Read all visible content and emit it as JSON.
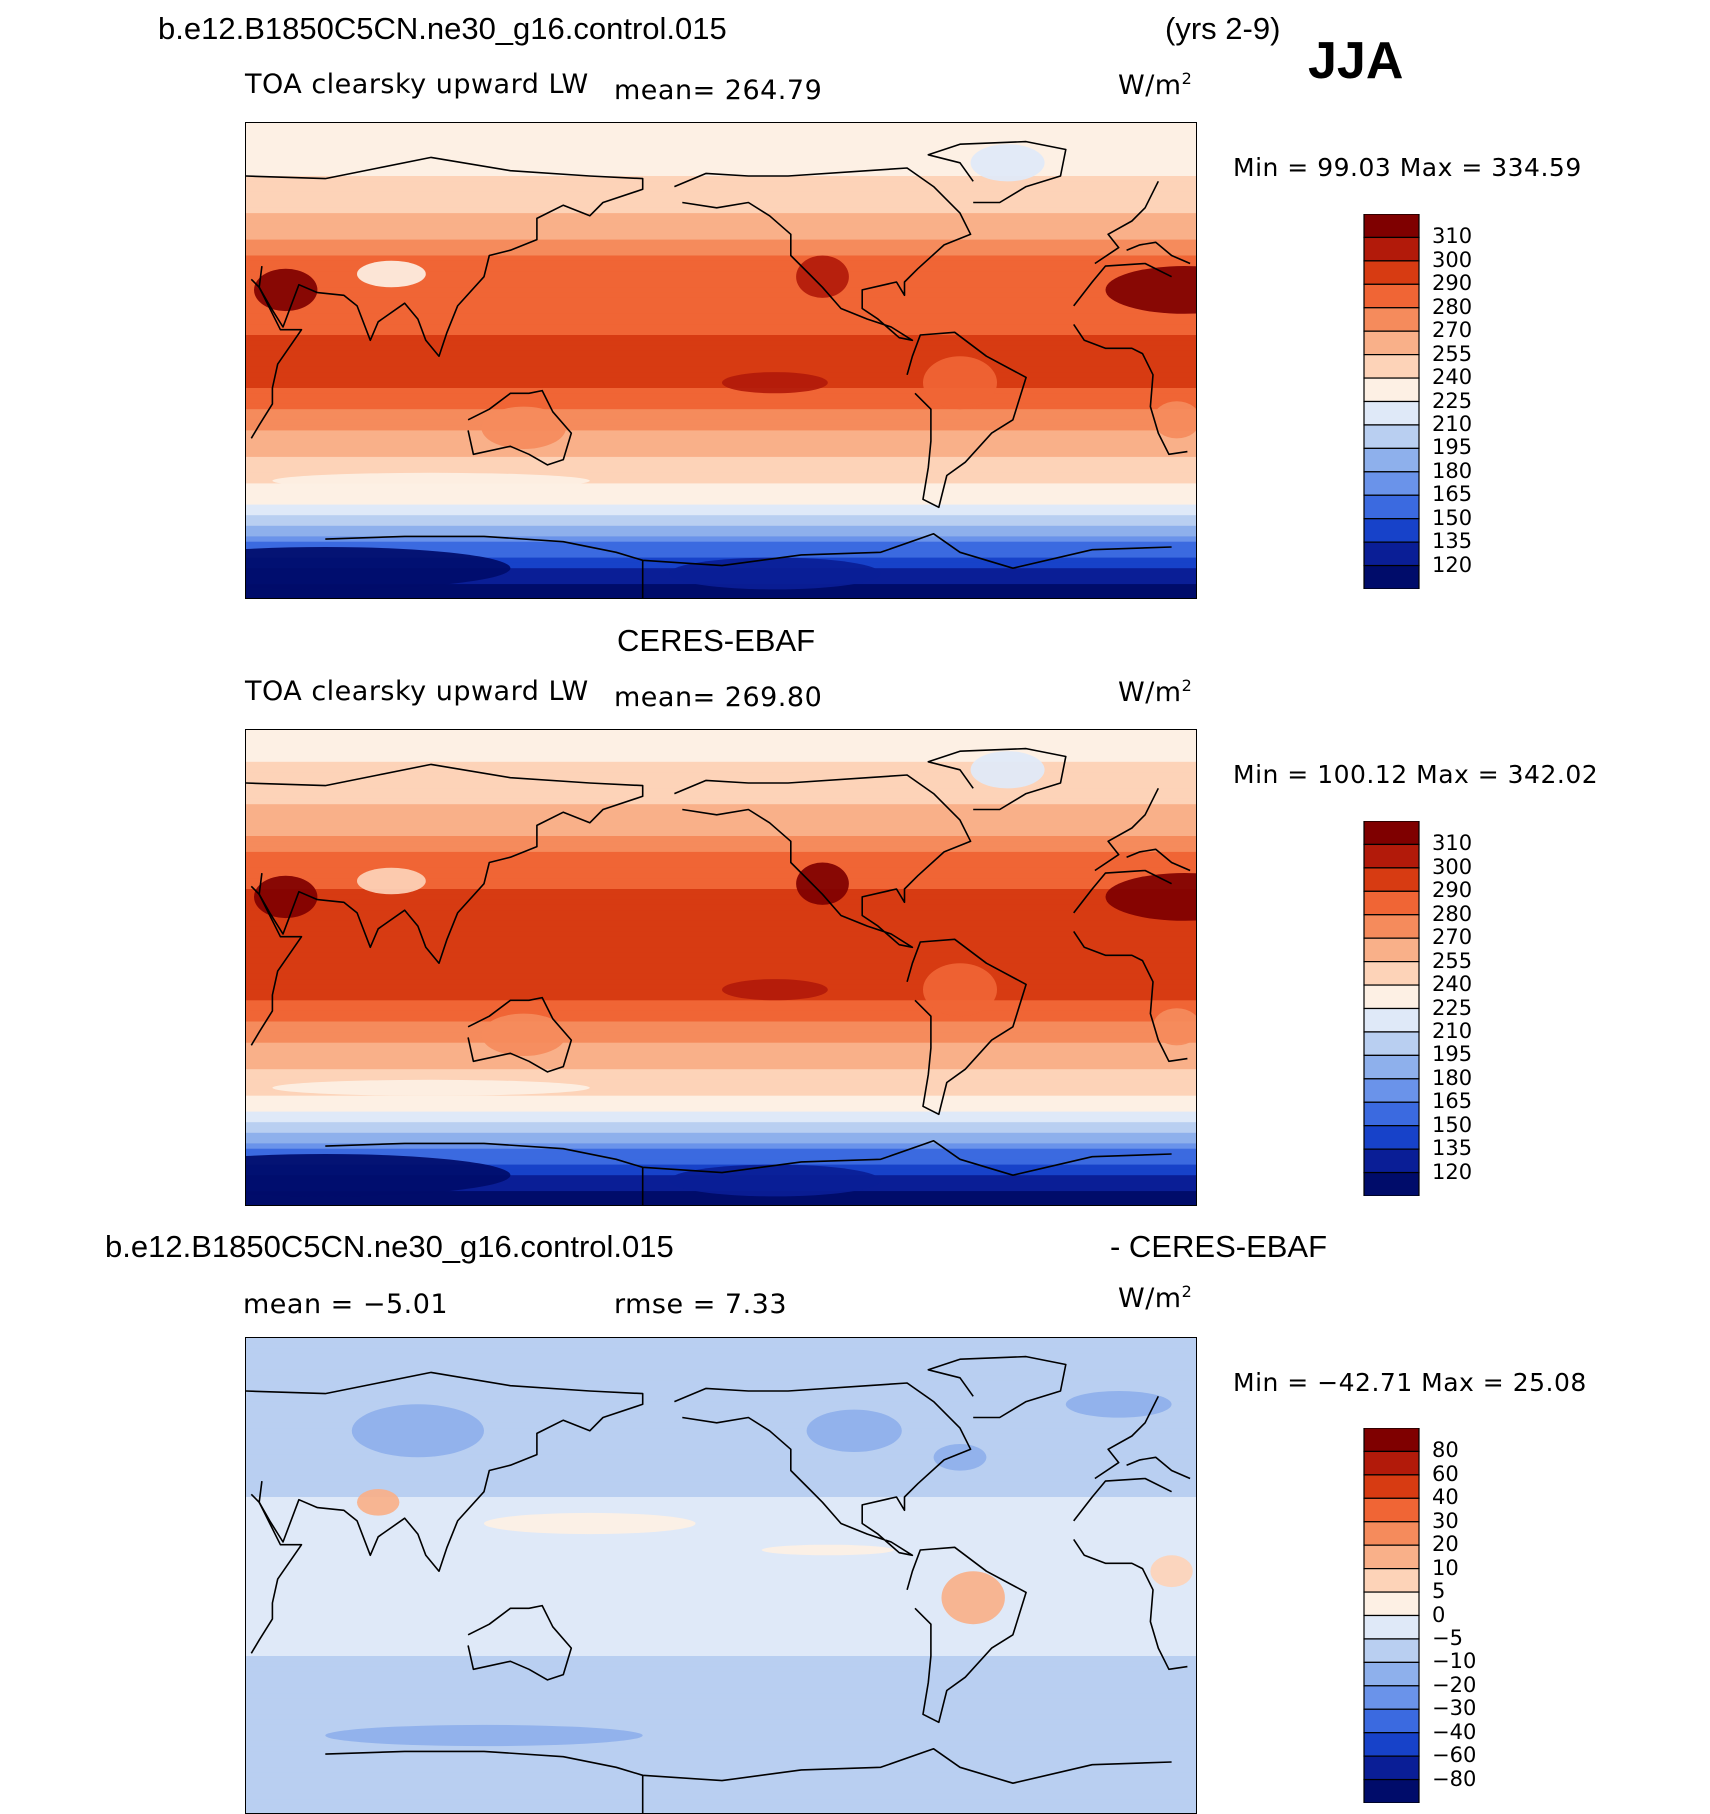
{
  "header": {
    "case_name": "b.e12.B1850C5CN.ne30_g16.control.015",
    "years": "(yrs 2-9)",
    "season": "JJA"
  },
  "panels": [
    {
      "title": "",
      "variable": "TOA clearsky upward LW",
      "mean_text": "mean= 264.79",
      "units": "W/m",
      "units_sup": "2",
      "minmax_text": "Min =  99.03 Max = 334.59"
    },
    {
      "title": "CERES-EBAF",
      "variable": "TOA clearsky upward LW",
      "mean_text": "mean= 269.80",
      "units": "W/m",
      "units_sup": "2",
      "minmax_text": "Min = 100.12 Max = 342.02"
    },
    {
      "title_left": "b.e12.B1850C5CN.ne30_g16.control.015",
      "title_right": "- CERES-EBAF",
      "mean_text": "mean =   −5.01",
      "rmse_text": "rmse =    7.33",
      "units": "W/m",
      "units_sup": "2",
      "minmax_text": "Min = −42.71 Max =  25.08"
    }
  ],
  "chart_data": [
    {
      "type": "heatmap",
      "title": "b.e12.B1850C5CN.ne30_g16.control.015 (yrs 2-9) JJA",
      "variable": "TOA clearsky upward LW",
      "units": "W/m2",
      "mean": 264.79,
      "min": 99.03,
      "max": 334.59,
      "colorbar_levels": [
        "310",
        "300",
        "290",
        "280",
        "270",
        "255",
        "240",
        "225",
        "210",
        "195",
        "180",
        "165",
        "150",
        "135",
        "120"
      ],
      "colors": [
        "#7f0000",
        "#b21a0a",
        "#d73b12",
        "#f06535",
        "#f58b5c",
        "#f9b089",
        "#fdd3b8",
        "#fdf0e4",
        "#dfe9f8",
        "#b9cff1",
        "#8eb0ec",
        "#6a93ea",
        "#3b6ae0",
        "#1742c9",
        "#0a1e96",
        "#000c6a"
      ],
      "zonal_band_values": [
        {
          "lat": 90,
          "value": 225
        },
        {
          "lat": 70,
          "value": 240
        },
        {
          "lat": 55,
          "value": 255
        },
        {
          "lat": 40,
          "value": 280
        },
        {
          "lat": 25,
          "value": 285
        },
        {
          "lat": 10,
          "value": 290
        },
        {
          "lat": -10,
          "value": 290
        },
        {
          "lat": -25,
          "value": 270
        },
        {
          "lat": -40,
          "value": 248
        },
        {
          "lat": -52,
          "value": 230
        },
        {
          "lat": -60,
          "value": 205
        },
        {
          "lat": -70,
          "value": 160
        },
        {
          "lat": -85,
          "value": 115
        }
      ]
    },
    {
      "type": "heatmap",
      "title": "CERES-EBAF",
      "variable": "TOA clearsky upward LW",
      "units": "W/m2",
      "mean": 269.8,
      "min": 100.12,
      "max": 342.02,
      "colorbar_levels": [
        "310",
        "300",
        "290",
        "280",
        "270",
        "255",
        "240",
        "225",
        "210",
        "195",
        "180",
        "165",
        "150",
        "135",
        "120"
      ],
      "colors": [
        "#7f0000",
        "#b21a0a",
        "#d73b12",
        "#f06535",
        "#f58b5c",
        "#f9b089",
        "#fdd3b8",
        "#fdf0e4",
        "#dfe9f8",
        "#b9cff1",
        "#8eb0ec",
        "#6a93ea",
        "#3b6ae0",
        "#1742c9",
        "#0a1e96",
        "#000c6a"
      ],
      "zonal_band_values": [
        {
          "lat": 90,
          "value": 230
        },
        {
          "lat": 70,
          "value": 248
        },
        {
          "lat": 55,
          "value": 262
        },
        {
          "lat": 40,
          "value": 285
        },
        {
          "lat": 25,
          "value": 292
        },
        {
          "lat": 10,
          "value": 295
        },
        {
          "lat": -10,
          "value": 293
        },
        {
          "lat": -25,
          "value": 275
        },
        {
          "lat": -40,
          "value": 252
        },
        {
          "lat": -52,
          "value": 232
        },
        {
          "lat": -60,
          "value": 205
        },
        {
          "lat": -70,
          "value": 160
        },
        {
          "lat": -85,
          "value": 115
        }
      ]
    },
    {
      "type": "heatmap",
      "title": "b.e12.B1850C5CN.ne30_g16.control.015 - CERES-EBAF",
      "units": "W/m2",
      "mean": -5.01,
      "rmse": 7.33,
      "min": -42.71,
      "max": 25.08,
      "colorbar_levels": [
        "80",
        "60",
        "40",
        "30",
        "20",
        "10",
        "5",
        "0",
        "−5",
        "−10",
        "−20",
        "−30",
        "−40",
        "−60",
        "−80"
      ],
      "colors": [
        "#7f0000",
        "#b21a0a",
        "#d73b12",
        "#f06535",
        "#f58b5c",
        "#f9b089",
        "#fdd3b8",
        "#fdf0e4",
        "#dfe9f8",
        "#b9cff1",
        "#8eb0ec",
        "#6a93ea",
        "#3b6ae0",
        "#1742c9",
        "#0a1e96",
        "#000c6a"
      ],
      "zonal_band_values": [
        {
          "lat": 90,
          "value": -5
        },
        {
          "lat": 60,
          "value": -7
        },
        {
          "lat": 30,
          "value": -5
        },
        {
          "lat": 0,
          "value": -3
        },
        {
          "lat": -30,
          "value": -5
        },
        {
          "lat": -60,
          "value": -6
        },
        {
          "lat": -85,
          "value": -8
        }
      ]
    }
  ]
}
